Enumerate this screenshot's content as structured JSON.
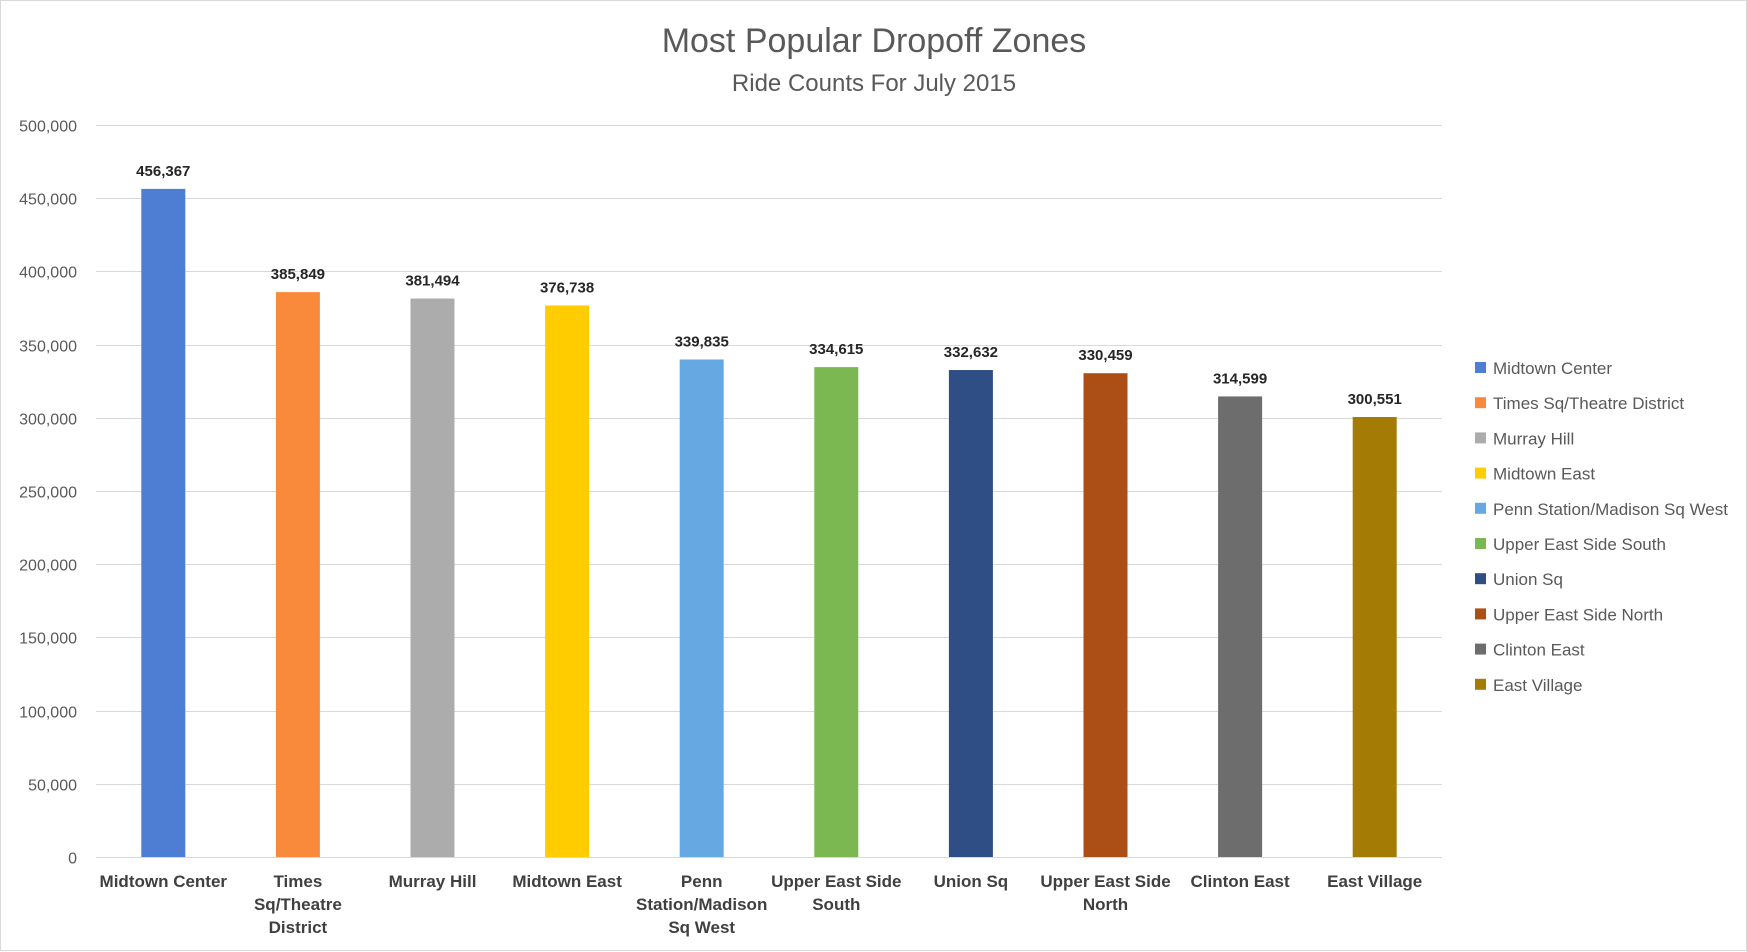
{
  "chart_data": {
    "type": "bar",
    "title": "Most Popular Dropoff Zones",
    "subtitle": "Ride Counts For July 2015",
    "xlabel": "",
    "ylabel": "",
    "ylim": [
      0,
      500000
    ],
    "yticks": [
      0,
      50000,
      100000,
      150000,
      200000,
      250000,
      300000,
      350000,
      400000,
      450000,
      500000
    ],
    "ytick_labels": [
      "0",
      "50,000",
      "100,000",
      "150,000",
      "200,000",
      "250,000",
      "300,000",
      "350,000",
      "400,000",
      "450,000",
      "500,000"
    ],
    "grid": true,
    "legend_position": "right",
    "categories": [
      "Midtown Center",
      "Times Sq/Theatre District",
      "Murray Hill",
      "Midtown East",
      "Penn Station/Madison Sq West",
      "Upper East Side South",
      "Union Sq",
      "Upper East Side North",
      "Clinton East",
      "East Village"
    ],
    "category_label_lines": [
      [
        "Midtown Center"
      ],
      [
        "Times",
        "Sq/Theatre",
        "District"
      ],
      [
        "Murray Hill"
      ],
      [
        "Midtown East"
      ],
      [
        "Penn",
        "Station/Madison",
        "Sq West"
      ],
      [
        "Upper East Side",
        "South"
      ],
      [
        "Union Sq"
      ],
      [
        "Upper East Side",
        "North"
      ],
      [
        "Clinton East"
      ],
      [
        "East Village"
      ]
    ],
    "values": [
      456367,
      385849,
      381494,
      376738,
      339835,
      334615,
      332632,
      330459,
      314599,
      300551
    ],
    "data_labels": [
      "456,367",
      "385,849",
      "381,494",
      "376,738",
      "339,835",
      "334,615",
      "332,632",
      "330,459",
      "314,599",
      "300,551"
    ],
    "colors": [
      "#4e7ed4",
      "#f98a3b",
      "#acacac",
      "#ffcc00",
      "#66a8e2",
      "#7cb852",
      "#2e4e85",
      "#ab4f16",
      "#6d6d6d",
      "#a47c05"
    ],
    "legend": [
      "Midtown Center",
      "Times Sq/Theatre District",
      "Murray Hill",
      "Midtown East",
      "Penn Station/Madison Sq West",
      "Upper East Side South",
      "Union Sq",
      "Upper East Side North",
      "Clinton East",
      "East Village"
    ]
  }
}
